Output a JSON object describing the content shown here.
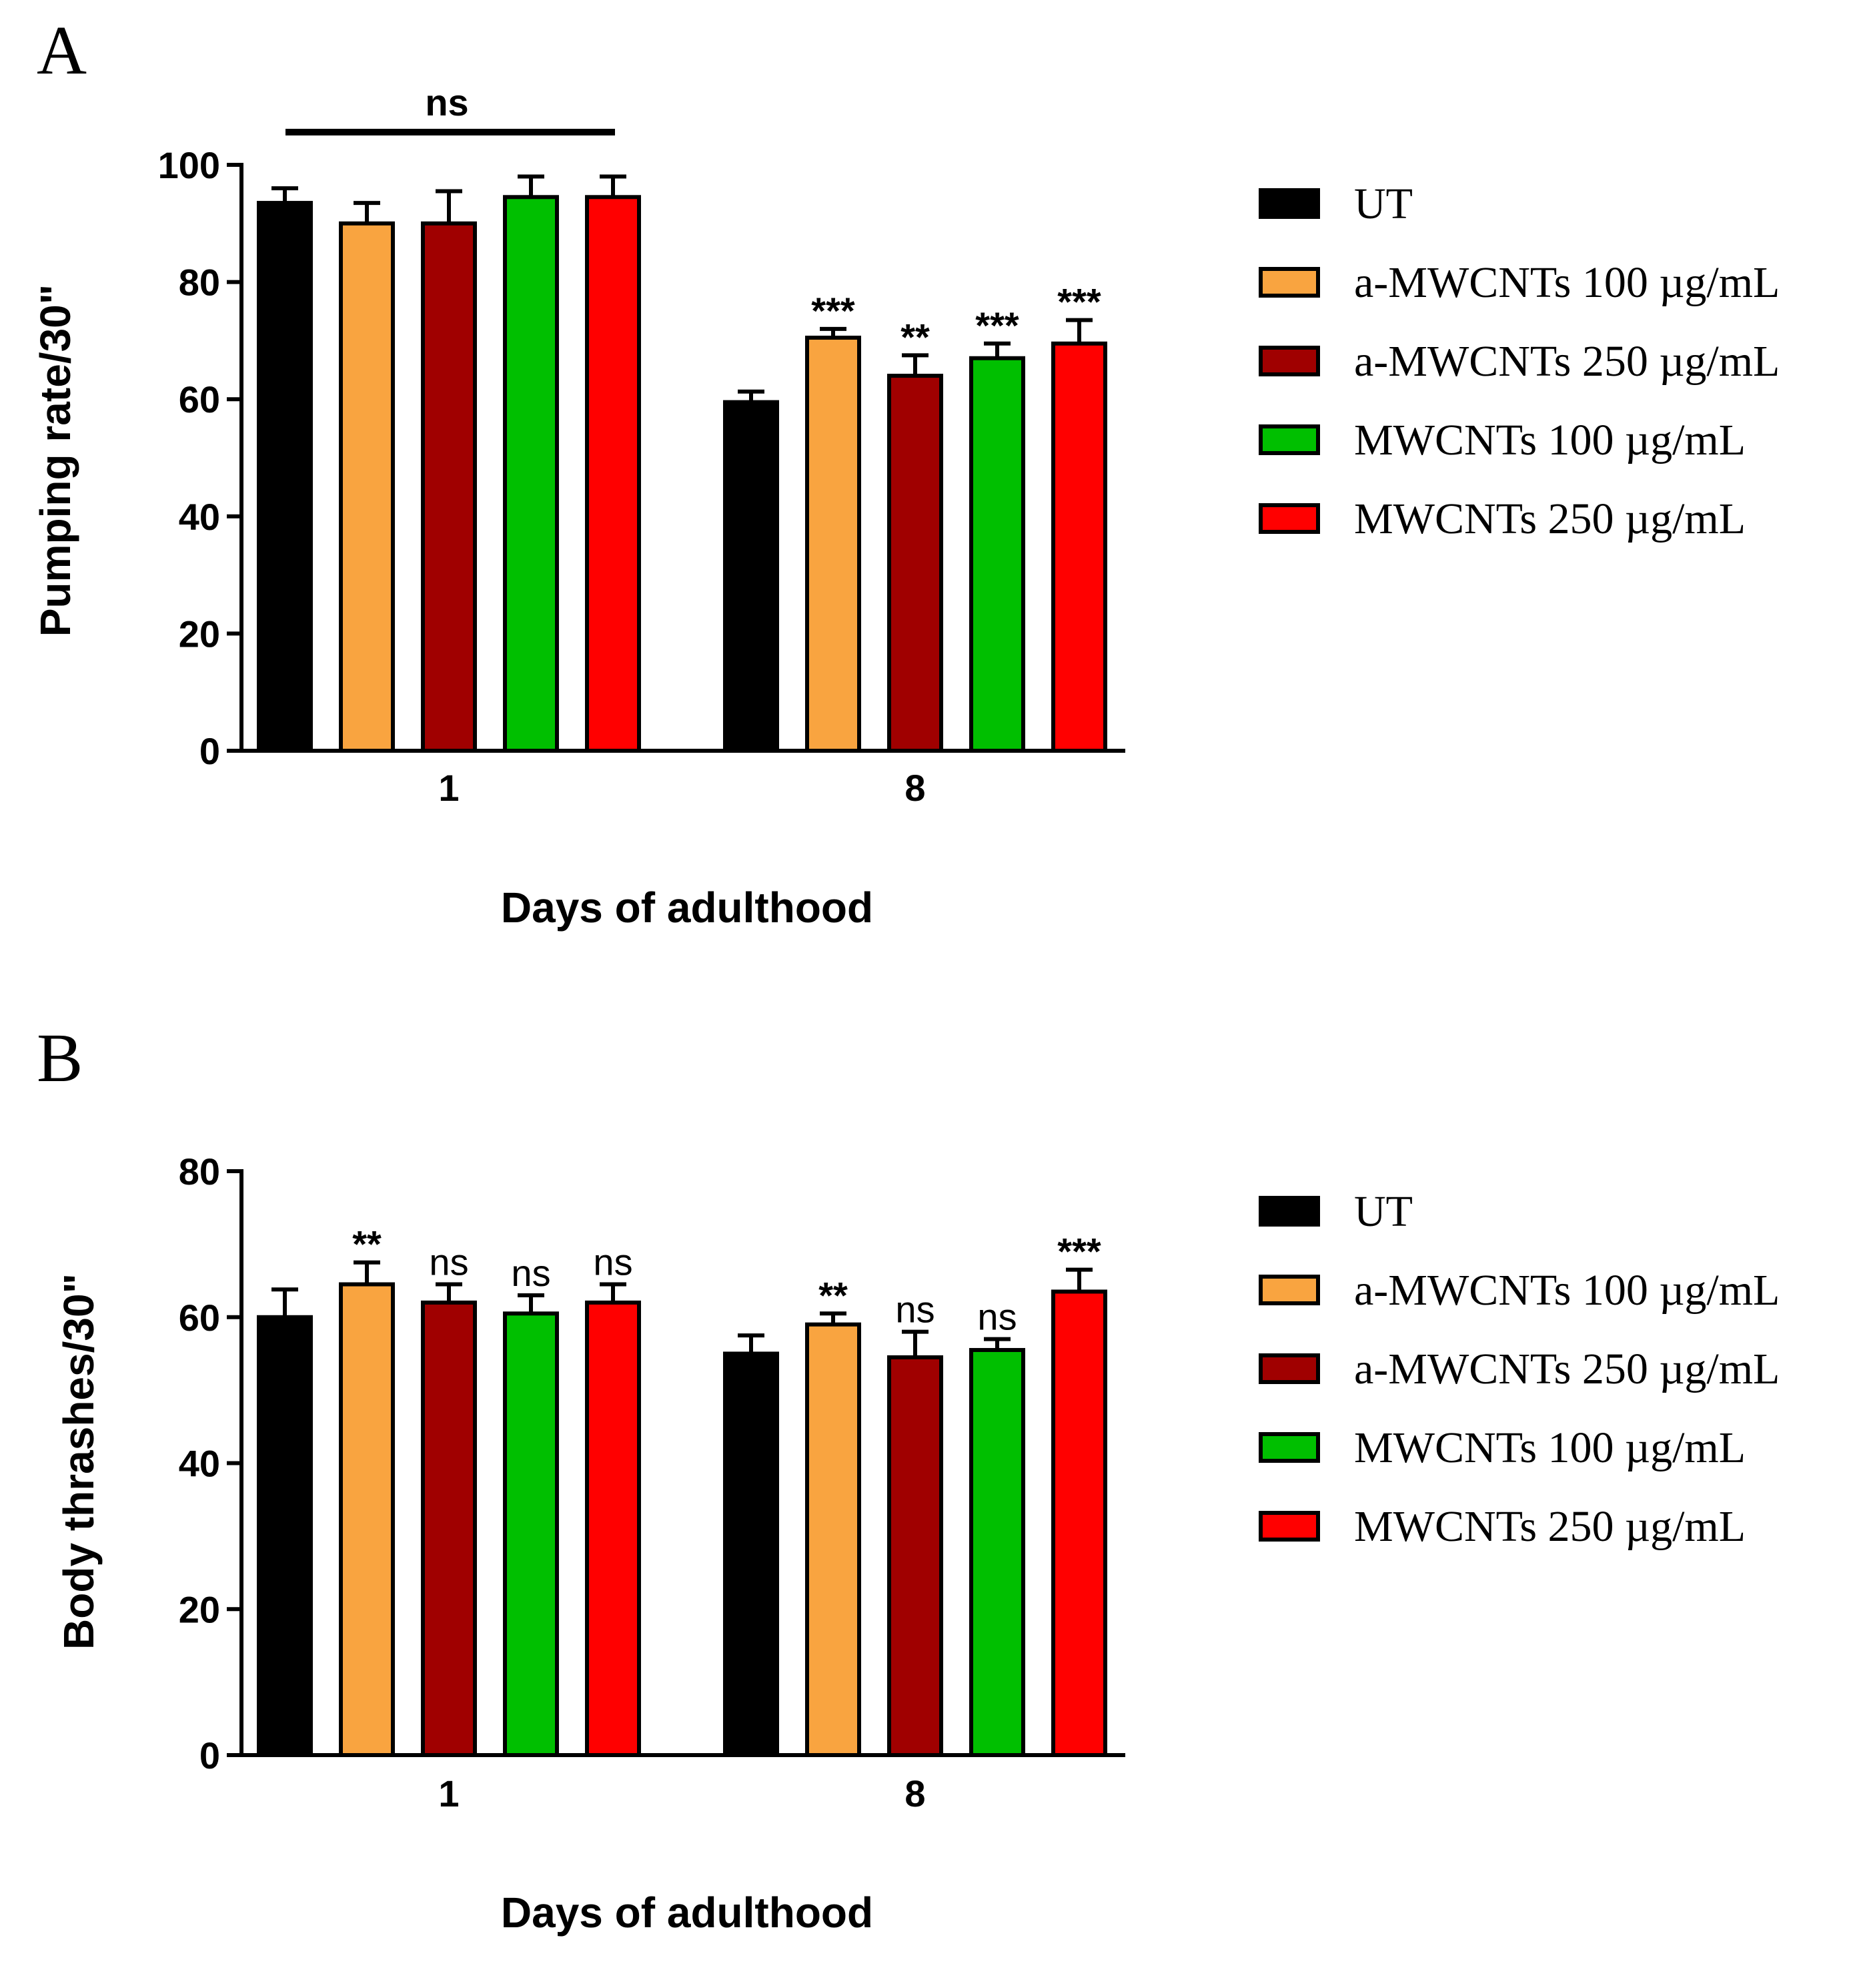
{
  "chart_data": [
    {
      "type": "bar",
      "panel": "A",
      "ylabel": "Pumping rate/30\"",
      "xlabel": "Days of adulthood",
      "ylim": [
        0,
        100
      ],
      "yticks": [
        0,
        20,
        40,
        60,
        80,
        100
      ],
      "categories": [
        "1",
        "8"
      ],
      "series": [
        {
          "name": "UT",
          "color": "#000000",
          "values": [
            93.5,
            59.5
          ],
          "errors": [
            2.5,
            1.8
          ],
          "sig": [
            "",
            ""
          ]
        },
        {
          "name": "a-MWCNTs 100 µg/mL",
          "color": "#f9a440",
          "values": [
            90.0,
            70.5
          ],
          "errors": [
            3.5,
            1.5
          ],
          "sig": [
            "",
            "***"
          ]
        },
        {
          "name": "a-MWCNTs 250 µg/mL",
          "color": "#a00000",
          "values": [
            90.0,
            64.0
          ],
          "errors": [
            5.5,
            3.5
          ],
          "sig": [
            "",
            "**"
          ]
        },
        {
          "name": "MWCNTs 100 µg/mL",
          "color": "#00bf00",
          "values": [
            94.5,
            67.0
          ],
          "errors": [
            3.5,
            2.5
          ],
          "sig": [
            "",
            "***"
          ]
        },
        {
          "name": "MWCNTs 250 µg/mL",
          "color": "#ff0000",
          "values": [
            94.5,
            69.5
          ],
          "errors": [
            3.5,
            4.0
          ],
          "sig": [
            "",
            "***"
          ]
        }
      ],
      "group_annotation": {
        "label": "ns",
        "category": "1"
      },
      "legend": "right"
    },
    {
      "type": "bar",
      "panel": "B",
      "ylabel": "Body thrashes/30\"",
      "xlabel": "Days of adulthood",
      "ylim": [
        0,
        80
      ],
      "yticks": [
        0,
        20,
        40,
        60,
        80
      ],
      "categories": [
        "1",
        "8"
      ],
      "series": [
        {
          "name": "UT",
          "color": "#000000",
          "values": [
            60.0,
            55.0
          ],
          "errors": [
            3.8,
            2.5
          ],
          "sig": [
            "",
            ""
          ]
        },
        {
          "name": "a-MWCNTs 100 µg/mL",
          "color": "#f9a440",
          "values": [
            64.5,
            59.0
          ],
          "errors": [
            3.0,
            1.5
          ],
          "sig": [
            "**",
            "**"
          ]
        },
        {
          "name": "a-MWCNTs 250 µg/mL",
          "color": "#a00000",
          "values": [
            62.0,
            54.5
          ],
          "errors": [
            2.5,
            3.5
          ],
          "sig": [
            "ns",
            "ns"
          ]
        },
        {
          "name": "MWCNTs 100 µg/mL",
          "color": "#00bf00",
          "values": [
            60.5,
            55.5
          ],
          "errors": [
            2.5,
            1.5
          ],
          "sig": [
            "ns",
            "ns"
          ]
        },
        {
          "name": "MWCNTs 250 µg/mL",
          "color": "#ff0000",
          "values": [
            62.0,
            63.5
          ],
          "errors": [
            2.5,
            3.0
          ],
          "sig": [
            "ns",
            "***"
          ]
        }
      ],
      "legend": "right"
    }
  ]
}
